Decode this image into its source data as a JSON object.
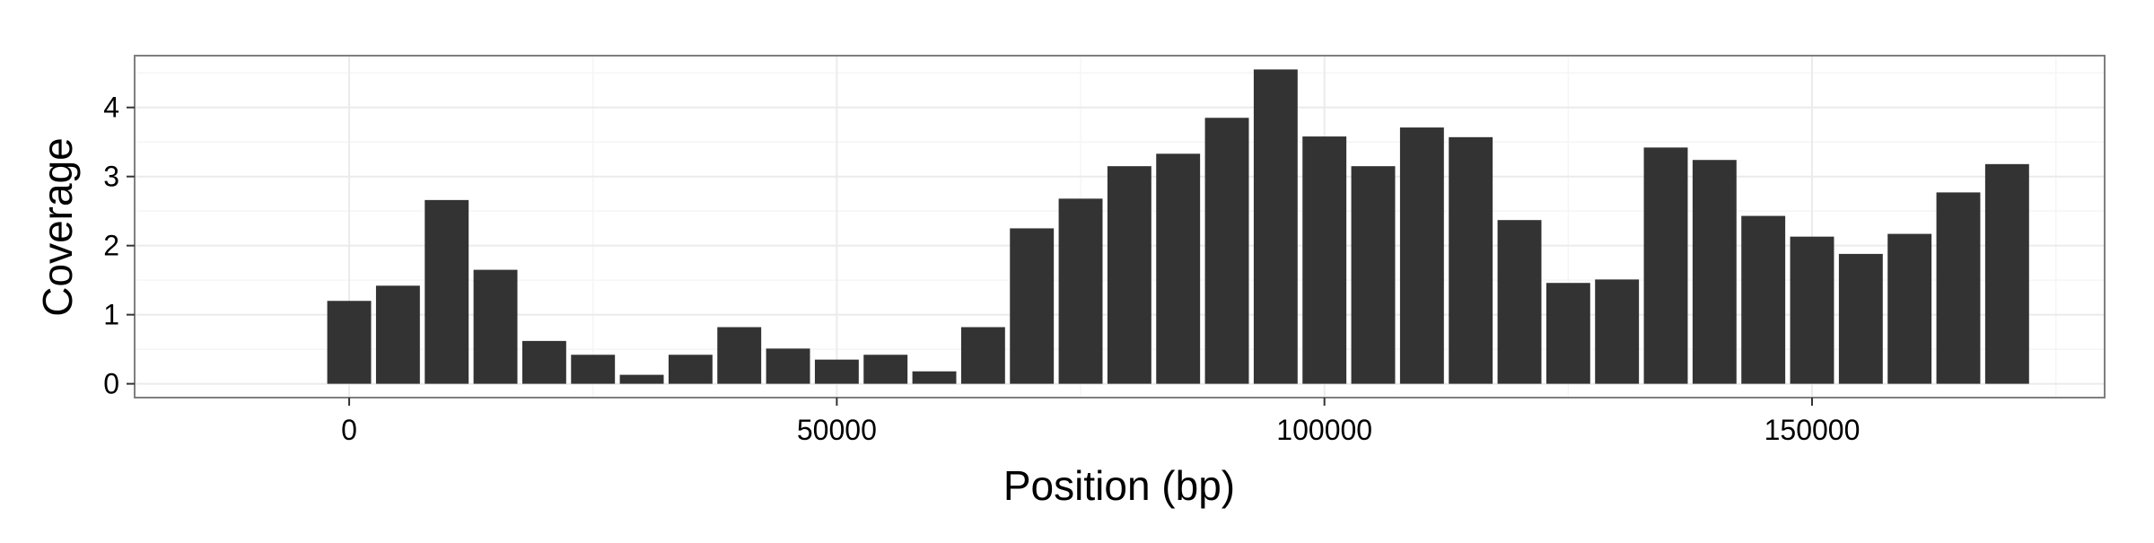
{
  "chart_data": {
    "type": "bar",
    "title": "",
    "xlabel": "Position (bp)",
    "ylabel": "Coverage",
    "xlim": [
      -22000,
      180000
    ],
    "ylim": [
      -0.2,
      4.75
    ],
    "x_ticks": [
      0,
      50000,
      100000,
      150000
    ],
    "x_tick_labels": [
      "0",
      "50000",
      "100000",
      "150000"
    ],
    "y_ticks": [
      0,
      1,
      2,
      3,
      4
    ],
    "y_tick_labels": [
      "0",
      "1",
      "2",
      "3",
      "4"
    ],
    "bin_width": 5000,
    "grid": true,
    "legend": "none",
    "colors": {
      "bar": "#333333",
      "panel_background": "#ffffff",
      "grid_major": "#ebebeb",
      "grid_minor": "#f5f5f5",
      "panel_border": "#7f7f7f",
      "axis_tick": "#333333"
    },
    "x": [
      0,
      5000,
      10000,
      15000,
      20000,
      25000,
      30000,
      35000,
      40000,
      45000,
      50000,
      55000,
      60000,
      65000,
      70000,
      75000,
      80000,
      85000,
      90000,
      95000,
      100000,
      105000,
      110000,
      115000,
      120000,
      125000,
      130000,
      135000,
      140000,
      145000,
      150000,
      155000,
      160000,
      165000,
      170000
    ],
    "values": [
      1.2,
      1.42,
      2.66,
      1.65,
      0.62,
      0.42,
      0.13,
      0.42,
      0.82,
      0.51,
      0.35,
      0.42,
      0.18,
      0.82,
      2.25,
      2.68,
      3.15,
      3.33,
      3.85,
      4.55,
      3.58,
      3.15,
      3.71,
      3.57,
      2.37,
      1.46,
      1.51,
      3.42,
      3.24,
      2.43,
      2.13,
      1.88,
      2.17,
      2.77,
      3.18
    ]
  }
}
